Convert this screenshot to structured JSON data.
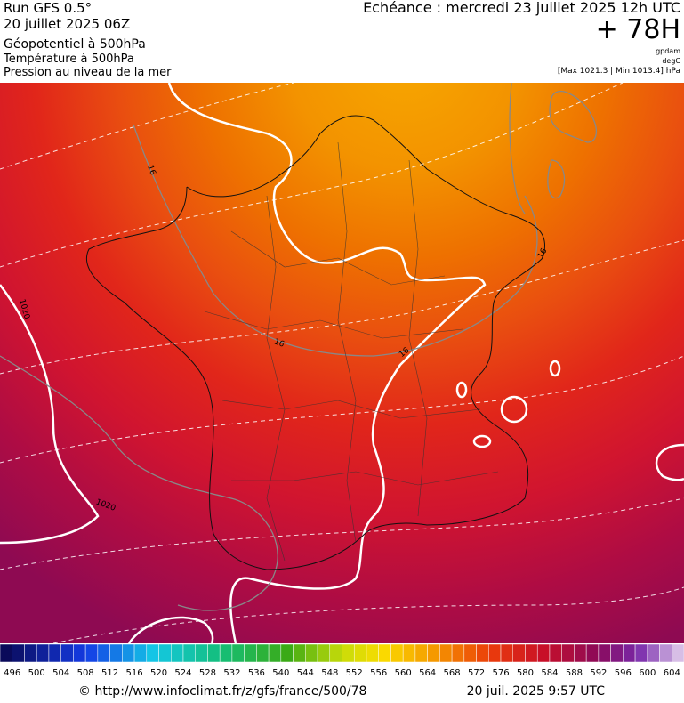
{
  "header": {
    "run": "Run GFS 0.5°",
    "date": "20 juillet 2025 06Z",
    "layer1": "Géopotentiel à 500hPa",
    "layer2": "Température à 500hPa",
    "layer3": "Pression au niveau de la mer",
    "valid": "Echéance : mercredi 23 juillet 2025 12h UTC",
    "lead": "+ 78H",
    "unit1": "gpdam",
    "unit2": "degC",
    "range": "[Max 1021.3 | Min 1013.4] hPa"
  },
  "map": {
    "contour_labels": [
      16,
      16,
      16,
      16,
      1020,
      1020
    ]
  },
  "colorbar": {
    "labels": [
      496,
      500,
      504,
      508,
      512,
      516,
      520,
      524,
      528,
      532,
      536,
      540,
      544,
      548,
      552,
      556,
      560,
      564,
      568,
      572,
      576,
      580,
      584,
      588,
      592,
      596,
      600,
      604
    ]
  },
  "footer": {
    "url": "© http://www.infoclimat.fr/z/gfs/france/500/78",
    "timestamp": "20 juil. 2025  9:57 UTC"
  }
}
